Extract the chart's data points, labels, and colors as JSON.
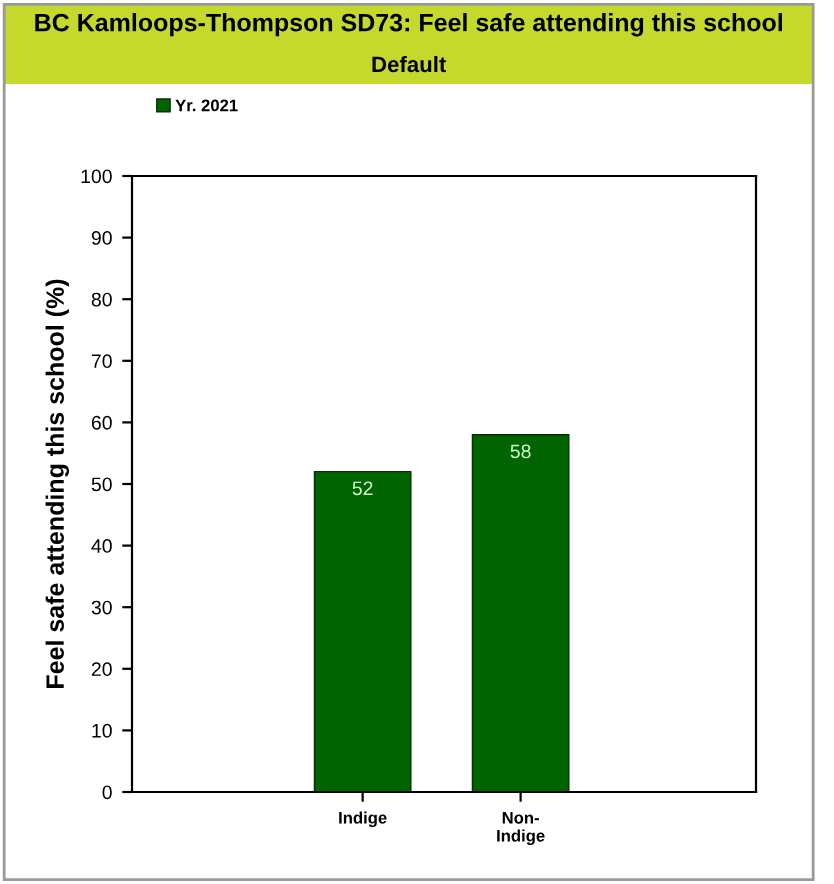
{
  "chart_data": {
    "type": "bar",
    "title": "BC Kamloops-Thompson SD73: Feel safe attending this school",
    "subtitle": "Default",
    "ylabel": "Feel safe attending this school (%)",
    "categories": [
      "Indige",
      "Non-\nIndige"
    ],
    "series": [
      {
        "name": "Yr. 2021",
        "color": "#006400",
        "values": [
          52,
          58
        ]
      }
    ],
    "ylim": [
      0,
      100
    ],
    "yticks": [
      0,
      10,
      20,
      30,
      40,
      50,
      60,
      70,
      80,
      90,
      100
    ],
    "data_labels": true,
    "legend": "top left",
    "grid": false
  }
}
